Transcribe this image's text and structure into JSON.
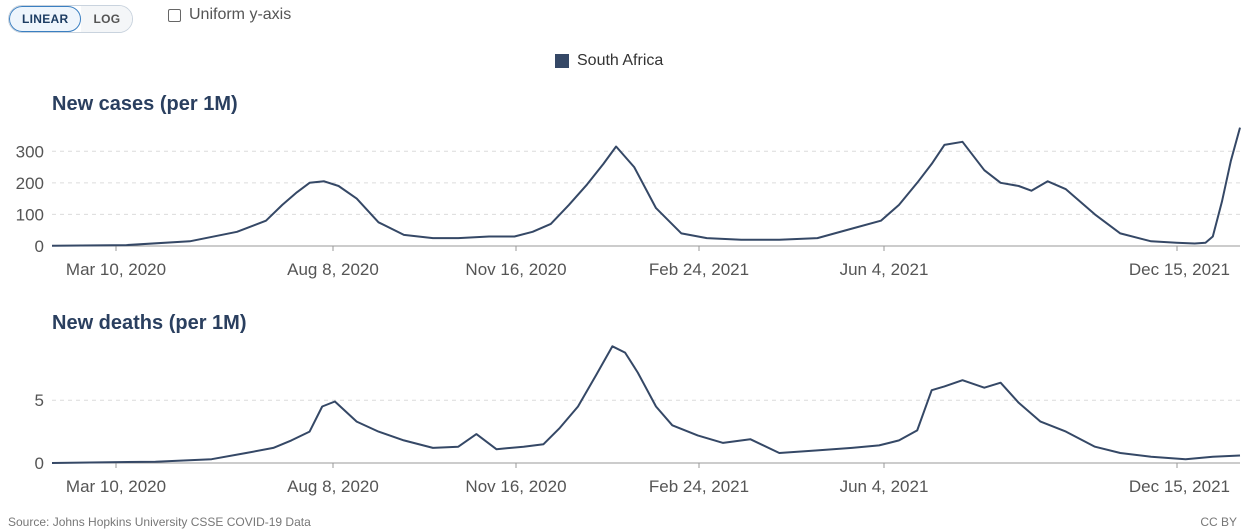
{
  "controls": {
    "linear_label": "LINEAR",
    "log_label": "LOG",
    "uniform_label": "Uniform y-axis"
  },
  "legend": {
    "label": "South Africa",
    "color": "#354866"
  },
  "footer": {
    "source": "Source: Johns Hopkins University CSSE COVID-19 Data",
    "license": "CC BY"
  },
  "chart_data": [
    {
      "type": "line",
      "title": "New cases (per 1M)",
      "x_tick_labels": [
        "Mar 10, 2020",
        "Aug 8, 2020",
        "Nov 16, 2020",
        "Feb 24, 2021",
        "Jun 4, 2021",
        "Dec 15, 2021"
      ],
      "x_range": [
        "2020-03-05",
        "2021-12-20"
      ],
      "ylim": [
        0,
        380
      ],
      "y_ticks": [
        0,
        100,
        200,
        300
      ],
      "grid": true,
      "series": [
        {
          "name": "South Africa",
          "color": "#354866",
          "x": [
            "2020-03-05",
            "2020-04-15",
            "2020-05-20",
            "2020-06-15",
            "2020-07-01",
            "2020-07-10",
            "2020-07-18",
            "2020-07-25",
            "2020-08-02",
            "2020-08-10",
            "2020-08-20",
            "2020-09-01",
            "2020-09-15",
            "2020-10-01",
            "2020-10-15",
            "2020-11-01",
            "2020-11-15",
            "2020-11-25",
            "2020-12-05",
            "2020-12-15",
            "2020-12-25",
            "2021-01-03",
            "2021-01-10",
            "2021-01-20",
            "2021-02-01",
            "2021-02-15",
            "2021-03-01",
            "2021-03-20",
            "2021-04-10",
            "2021-05-01",
            "2021-05-20",
            "2021-06-05",
            "2021-06-15",
            "2021-06-25",
            "2021-07-03",
            "2021-07-10",
            "2021-07-20",
            "2021-08-01",
            "2021-08-10",
            "2021-08-20",
            "2021-08-27",
            "2021-09-05",
            "2021-09-15",
            "2021-10-01",
            "2021-10-15",
            "2021-11-01",
            "2021-11-15",
            "2021-11-25",
            "2021-12-01",
            "2021-12-05",
            "2021-12-10",
            "2021-12-15",
            "2021-12-20"
          ],
          "y": [
            1,
            3,
            15,
            45,
            80,
            130,
            170,
            200,
            205,
            190,
            150,
            75,
            35,
            25,
            25,
            30,
            30,
            45,
            70,
            130,
            195,
            260,
            315,
            250,
            120,
            40,
            25,
            20,
            20,
            25,
            55,
            80,
            130,
            200,
            260,
            320,
            330,
            240,
            200,
            190,
            175,
            205,
            180,
            100,
            40,
            15,
            10,
            8,
            10,
            30,
            140,
            270,
            375
          ]
        }
      ]
    },
    {
      "type": "line",
      "title": "New deaths (per 1M)",
      "x_tick_labels": [
        "Mar 10, 2020",
        "Aug 8, 2020",
        "Nov 16, 2020",
        "Feb 24, 2021",
        "Jun 4, 2021",
        "Dec 15, 2021"
      ],
      "x_range": [
        "2020-03-05",
        "2021-12-20"
      ],
      "ylim": [
        0,
        9.8
      ],
      "y_ticks": [
        0,
        5
      ],
      "grid": true,
      "series": [
        {
          "name": "South Africa",
          "color": "#354866",
          "x": [
            "2020-03-05",
            "2020-05-01",
            "2020-06-01",
            "2020-06-20",
            "2020-07-05",
            "2020-07-15",
            "2020-07-25",
            "2020-08-01",
            "2020-08-08",
            "2020-08-20",
            "2020-09-01",
            "2020-09-15",
            "2020-10-01",
            "2020-10-15",
            "2020-10-25",
            "2020-11-05",
            "2020-11-20",
            "2020-12-01",
            "2020-12-10",
            "2020-12-20",
            "2020-12-30",
            "2021-01-08",
            "2021-01-15",
            "2021-01-22",
            "2021-02-01",
            "2021-02-10",
            "2021-02-24",
            "2021-03-10",
            "2021-03-25",
            "2021-04-10",
            "2021-05-01",
            "2021-05-20",
            "2021-06-04",
            "2021-06-15",
            "2021-06-25",
            "2021-07-03",
            "2021-07-10",
            "2021-07-20",
            "2021-08-01",
            "2021-08-10",
            "2021-08-20",
            "2021-09-01",
            "2021-09-15",
            "2021-10-01",
            "2021-10-15",
            "2021-11-01",
            "2021-11-20",
            "2021-12-05",
            "2021-12-20"
          ],
          "y": [
            0,
            0.1,
            0.3,
            0.8,
            1.2,
            1.8,
            2.5,
            4.5,
            4.9,
            3.3,
            2.5,
            1.8,
            1.2,
            1.3,
            2.3,
            1.1,
            1.3,
            1.5,
            2.8,
            4.5,
            7.0,
            9.3,
            8.8,
            7.2,
            4.5,
            3.0,
            2.2,
            1.6,
            1.9,
            0.8,
            1.0,
            1.2,
            1.4,
            1.8,
            2.6,
            5.8,
            6.1,
            6.6,
            6.0,
            6.4,
            4.8,
            3.3,
            2.5,
            1.3,
            0.8,
            0.5,
            0.3,
            0.5,
            0.6
          ]
        }
      ]
    }
  ]
}
